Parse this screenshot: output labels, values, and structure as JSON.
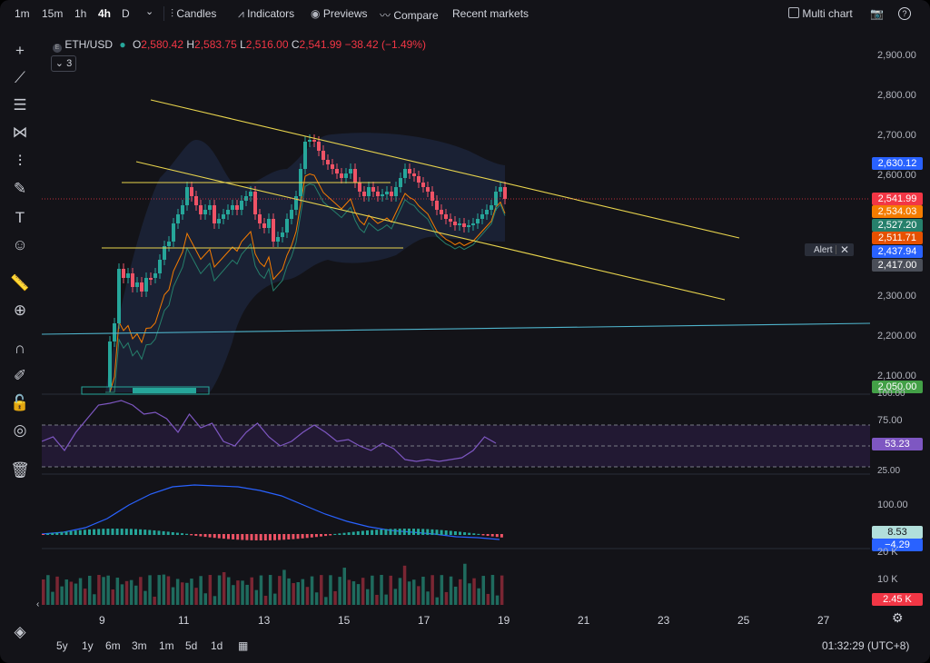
{
  "toolbar": {
    "timeframes": [
      "1m",
      "15m",
      "1h",
      "4h",
      "D"
    ],
    "active_timeframe": "4h",
    "candles_label": "Candles",
    "indicators_label": "Indicators",
    "previews_label": "Previews",
    "compare_label": "Compare",
    "recent_markets_label": "Recent markets",
    "multi_chart_label": "Multi chart"
  },
  "legend": {
    "symbol": "ETH/USD",
    "open_label": "O",
    "open": "2,580.42",
    "high_label": "H",
    "high": "2,583.75",
    "low_label": "L",
    "low": "2,516.00",
    "close_label": "C",
    "close": "2,541.99",
    "change": "−38.42 (−1.49%)",
    "collapsed_count": "3"
  },
  "price_axis": {
    "labels": [
      "2,900.00",
      "2,800.00",
      "2,700.00",
      "2,600.00",
      "2,300.00",
      "2,200.00",
      "2,100.00"
    ],
    "tags": [
      {
        "text": "2,630.12",
        "color": "#2962ff"
      },
      {
        "text": "2,541.99",
        "color": "#f23645"
      },
      {
        "text": "2,534.03",
        "color": "#f57c00"
      },
      {
        "text": "2,527.20",
        "color": "#26806c"
      },
      {
        "text": "2,511.71",
        "color": "#e65100"
      },
      {
        "text": "2,437.94",
        "color": "#2962ff"
      },
      {
        "text": "2,417.00",
        "color": "#4a4e58"
      },
      {
        "text": "2,050.00",
        "color": "#43a047"
      }
    ],
    "alert_label": "Alert"
  },
  "rsi_axis": {
    "labels": [
      "100.00",
      "75.00",
      "25.00"
    ],
    "tag": {
      "text": "53.23",
      "color": "#7e57c2"
    }
  },
  "macd_axis": {
    "labels": [
      "100.00"
    ],
    "tags": [
      {
        "text": "8.53",
        "color": "#b2dfdb"
      },
      {
        "text": "−4.29",
        "color": "#2962ff"
      }
    ]
  },
  "volume_axis": {
    "labels": [
      "20 K",
      "10 K"
    ],
    "tag": {
      "text": "2.45 K",
      "color": "#f23645"
    }
  },
  "x_axis": {
    "labels": [
      "9",
      "11",
      "13",
      "15",
      "17",
      "19",
      "21",
      "23",
      "25",
      "27"
    ]
  },
  "bottom": {
    "ranges": [
      "5y",
      "1y",
      "6m",
      "3m",
      "1m",
      "5d",
      "1d"
    ],
    "clock": "01:32:29 (UTC+8)"
  },
  "colors": {
    "up": "#26a69a",
    "down": "#ef5366",
    "bg": "#131318",
    "trend": "#e8d44d",
    "hline": "#4fb4cc"
  }
}
